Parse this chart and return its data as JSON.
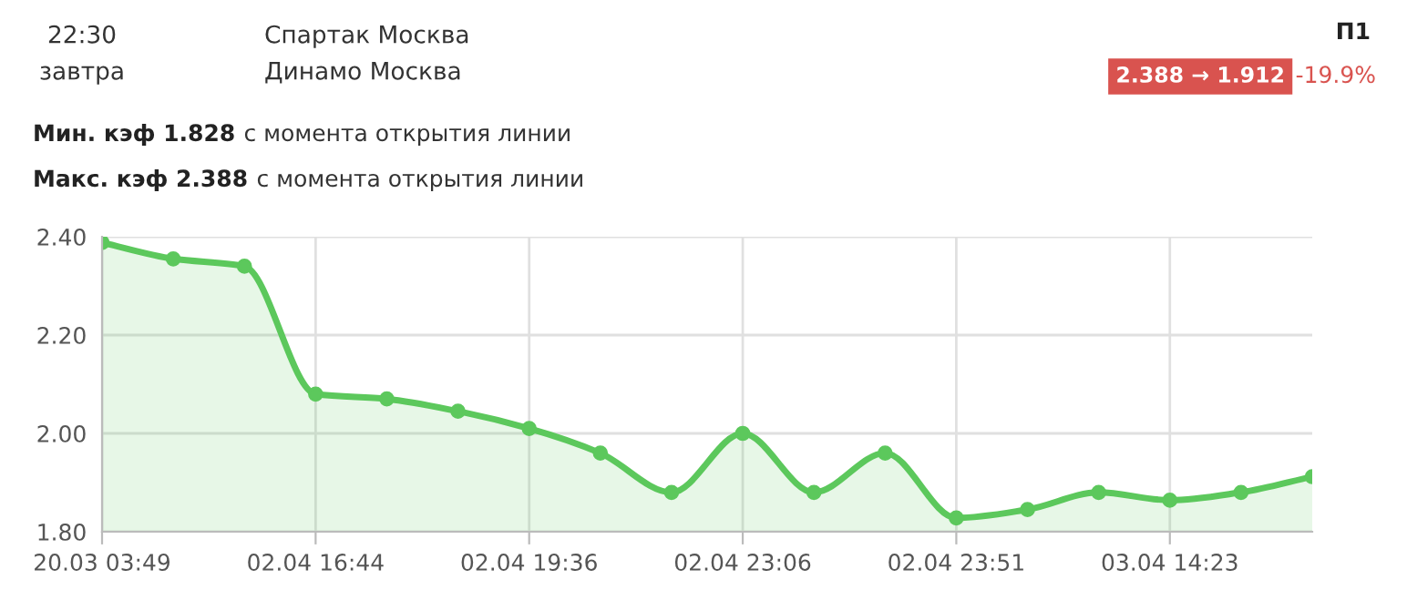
{
  "chart_data": {
    "type": "area",
    "categories": [
      "20.03 03:49",
      null,
      null,
      "02.04 16:44",
      null,
      null,
      "02.04 19:36",
      null,
      null,
      "02.04 23:06",
      null,
      null,
      "02.04 23:51",
      null,
      null,
      "03.04 14:23",
      null,
      null
    ],
    "series": [
      {
        "color": "#5cc85c",
        "values": [
          2.388,
          2.355,
          2.34,
          2.08,
          2.07,
          2.045,
          2.01,
          1.96,
          1.88,
          2.0,
          1.88,
          1.96,
          1.828,
          1.845,
          1.88,
          1.864,
          1.88,
          1.912
        ]
      }
    ],
    "ylim": [
      1.8,
      2.4
    ],
    "yticks": [
      {
        "value": 1.8,
        "label": "1.80"
      },
      {
        "value": 2.0,
        "label": "2.00"
      },
      {
        "value": 2.2,
        "label": "2.20"
      },
      {
        "value": 2.4,
        "label": "2.40"
      }
    ],
    "grid": true,
    "marker": "circle",
    "line_style": "solid",
    "annotations": [
      "22:30",
      "завтра",
      "Спартак Москва",
      "Динамо Москва",
      "П1",
      "2.388 → 1.912",
      "-19.9%",
      "Мин. кэф 1.828",
      "с момента открытия линии",
      "Макс. кэф 2.388",
      "с момента открытия линии"
    ]
  }
}
